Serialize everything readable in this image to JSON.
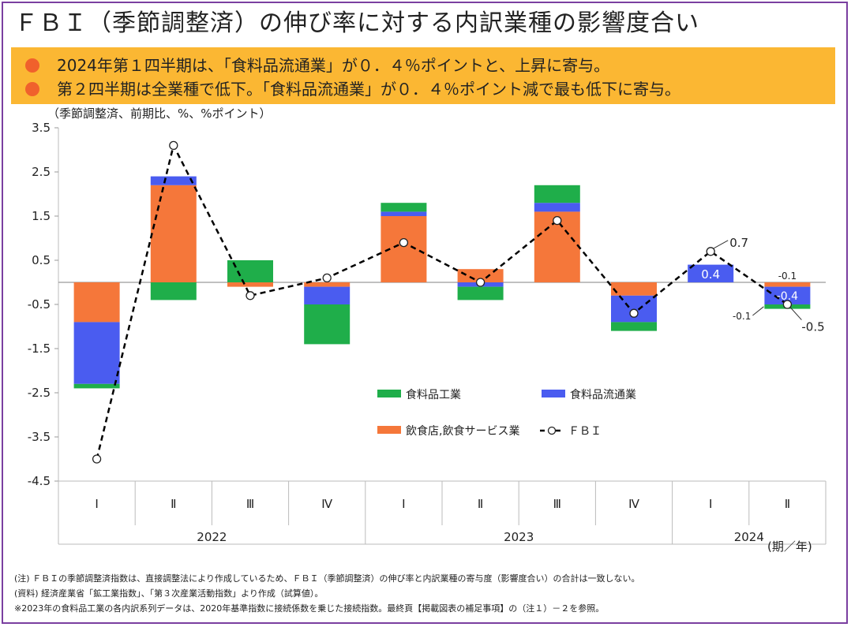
{
  "title": "ＦＢＩ（季節調整済）の伸び率に対する内訳業種の影響度合い",
  "summary": [
    "2024年第１四半期は、「食料品流通業」が０．４％ポイントと、上昇に寄与。",
    "第２四半期は全業種で低下。「食料品流通業」が０．４％ポイント減で最も低下に寄与。"
  ],
  "unit_label": "（季節調整済、前期比、%、%ポイント）",
  "notes": [
    "(注) ＦＢＩの季節調整済指数は、直接調整法により作成しているため、ＦＢＩ（季節調整済）の伸び率と内訳業種の寄与度（影響度合い）の合計は一致しない。",
    "(資料) 経済産業省「鉱工業指数」、「第３次産業活動指数」より作成（試算値）。",
    "※2023年の食料品工業の各内訳系列データは、2020年基準指数に接続係数を乗じた接続指数。最終頁【掲載図表の補足事項】の（注１）－２を参照。"
  ],
  "colors": {
    "food_manufacturing": "#1fae4a",
    "food_distribution": "#4a5cf0",
    "restaurants": "#f5773a",
    "fbi": "#000000",
    "frame": "#7a3fa0",
    "summary_bg": "#fbb733",
    "bullet": "#f0612c"
  },
  "chart_data": {
    "type": "bar",
    "stacked": true,
    "categories": [
      "Ⅰ",
      "Ⅱ",
      "Ⅲ",
      "Ⅳ",
      "Ⅰ",
      "Ⅱ",
      "Ⅲ",
      "Ⅳ",
      "Ⅰ",
      "Ⅱ"
    ],
    "years": [
      {
        "label": "2022",
        "span": 4
      },
      {
        "label": "2023",
        "span": 4
      },
      {
        "label": "2024",
        "span": 2
      }
    ],
    "x_axis_suffix": "(期／年)",
    "ylim": [
      -4.5,
      3.5
    ],
    "yticks": [
      "3.5",
      "2.5",
      "1.5",
      "0.5",
      "-0.5",
      "-1.5",
      "-2.5",
      "-3.5",
      "-4.5"
    ],
    "series": [
      {
        "name": "飲食店,飲食サービス業",
        "key": "restaurants",
        "values": [
          -0.9,
          2.2,
          -0.1,
          -0.1,
          1.5,
          0.3,
          1.6,
          -0.3,
          0.0,
          -0.1
        ]
      },
      {
        "name": "食料品流通業",
        "key": "food_distribution",
        "values": [
          -1.4,
          0.2,
          0.0,
          -0.4,
          0.1,
          -0.1,
          0.2,
          -0.6,
          0.4,
          -0.4
        ]
      },
      {
        "name": "食料品工業",
        "key": "food_manufacturing",
        "values": [
          -0.1,
          -0.4,
          0.5,
          -0.9,
          0.2,
          -0.3,
          0.4,
          -0.2,
          0.0,
          -0.1
        ]
      }
    ],
    "line": {
      "name": "ＦＢＩ",
      "key": "fbi",
      "values": [
        -4.0,
        3.1,
        -0.3,
        0.1,
        0.9,
        0.0,
        1.4,
        -0.7,
        0.7,
        -0.5
      ]
    },
    "annotations": [
      {
        "category_index": 8,
        "text": "0.4",
        "target": "food_distribution_bar"
      },
      {
        "category_index": 8,
        "text": "0.7",
        "target": "fbi_point"
      },
      {
        "category_index": 9,
        "text": "-0.1",
        "target": "restaurants_segment"
      },
      {
        "category_index": 9,
        "text": "-0.4",
        "target": "food_distribution_segment"
      },
      {
        "category_index": 9,
        "text": "-0.1",
        "target": "food_manufacturing_segment"
      },
      {
        "category_index": 9,
        "text": "-0.5",
        "target": "fbi_point"
      }
    ],
    "grid": false,
    "legend_placement": "lower-right inside plot"
  }
}
